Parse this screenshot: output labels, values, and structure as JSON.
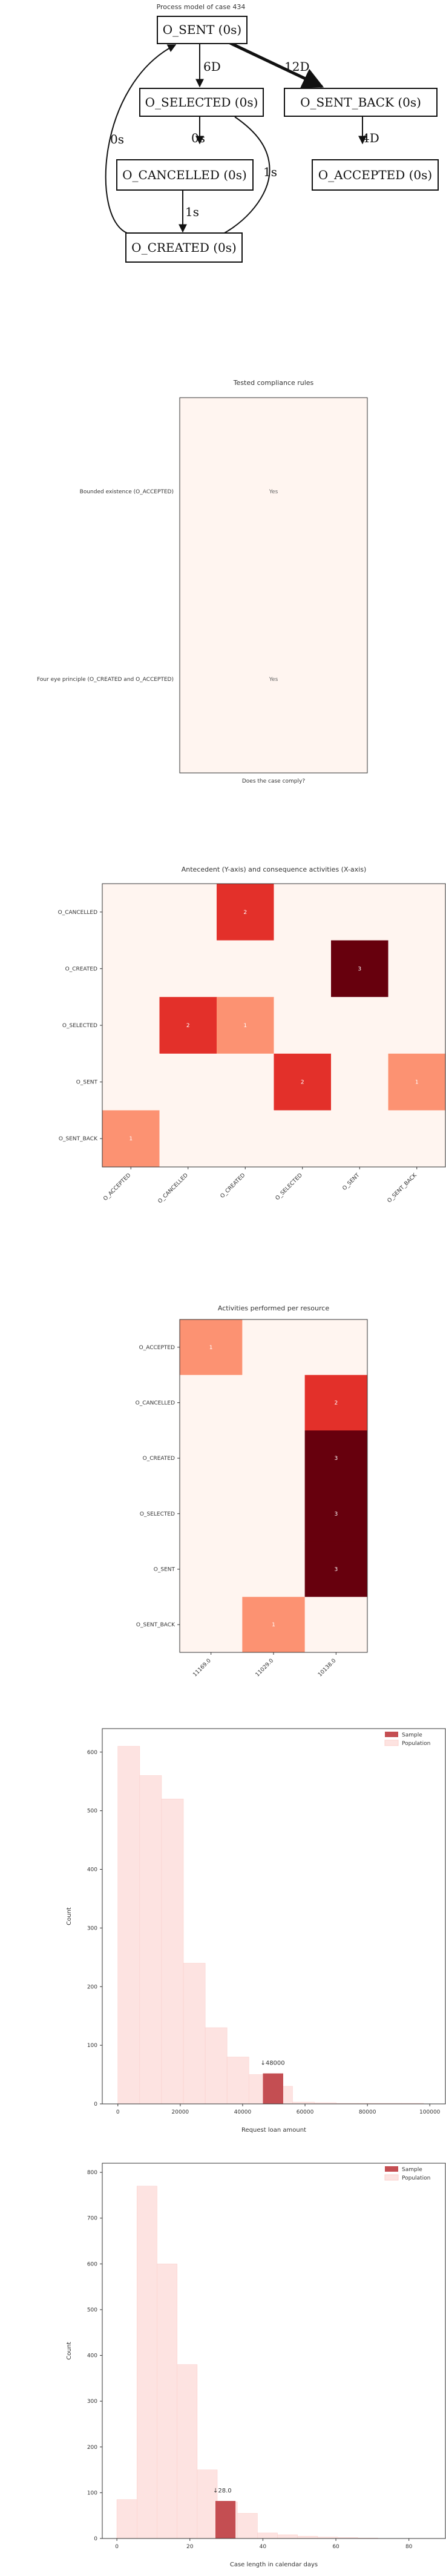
{
  "process_model": {
    "title": "Process model of case 434",
    "nodes": [
      "O_SENT (0s)",
      "O_SELECTED (0s)",
      "O_SENT_BACK (0s)",
      "O_CANCELLED (0s)",
      "O_ACCEPTED (0s)",
      "O_CREATED (0s)"
    ],
    "edges": [
      {
        "from": "O_SENT (0s)",
        "to": "O_SELECTED (0s)",
        "label": "6D"
      },
      {
        "from": "O_SENT (0s)",
        "to": "O_SENT_BACK (0s)",
        "label": "12D"
      },
      {
        "from": "O_SELECTED (0s)",
        "to": "O_CANCELLED (0s)",
        "label": "0s"
      },
      {
        "from": "O_SELECTED (0s)",
        "to": "O_CREATED (0s)",
        "label": "1s"
      },
      {
        "from": "O_SENT_BACK (0s)",
        "to": "O_ACCEPTED (0s)",
        "label": "4D"
      },
      {
        "from": "O_CANCELLED (0s)",
        "to": "O_CREATED (0s)",
        "label": "1s"
      },
      {
        "from": "O_CREATED (0s)",
        "to": "O_SENT (0s)",
        "label": "0s"
      }
    ]
  },
  "chart_data": [
    {
      "type": "heatmap",
      "title": "Tested compliance rules",
      "xlabel": "Does the case comply?",
      "rows": [
        "Bounded existence (O_ACCEPTED)",
        "Four eye principle (O_CREATED and O_ACCEPTED)"
      ],
      "columns": [
        ""
      ],
      "cells": [
        [
          "Yes"
        ],
        [
          "Yes"
        ]
      ],
      "colors": {
        "cell": "#fff5f0",
        "text": "#666666",
        "border": "#333333"
      }
    },
    {
      "type": "heatmap",
      "title": "Antecedent (Y-axis) and consequence activities (X-axis)",
      "rows": [
        "O_CANCELLED",
        "O_CREATED",
        "O_SELECTED",
        "O_SENT",
        "O_SENT_BACK"
      ],
      "columns": [
        "O_ACCEPTED",
        "O_CANCELLED",
        "O_CREATED",
        "O_SELECTED",
        "O_SENT",
        "O_SENT_BACK"
      ],
      "values": [
        [
          0,
          0,
          2,
          0,
          0,
          0
        ],
        [
          0,
          0,
          0,
          0,
          3,
          0
        ],
        [
          0,
          2,
          1,
          0,
          0,
          0
        ],
        [
          0,
          0,
          0,
          2,
          0,
          1
        ],
        [
          1,
          0,
          0,
          0,
          0,
          0
        ]
      ],
      "colors": {
        "scale": [
          "#fff5f0",
          "#fc9272",
          "#e3302a",
          "#67000d"
        ]
      }
    },
    {
      "type": "heatmap",
      "title": "Activities performed per resource",
      "rows": [
        "O_ACCEPTED",
        "O_CANCELLED",
        "O_CREATED",
        "O_SELECTED",
        "O_SENT",
        "O_SENT_BACK"
      ],
      "columns": [
        "11169.0",
        "11029.0",
        "10138.0"
      ],
      "values": [
        [
          1,
          0,
          0
        ],
        [
          0,
          0,
          2
        ],
        [
          0,
          0,
          3
        ],
        [
          0,
          0,
          3
        ],
        [
          0,
          0,
          3
        ],
        [
          0,
          1,
          0
        ]
      ],
      "colors": {
        "scale": [
          "#fff5f0",
          "#fc9272",
          "#e3302a",
          "#67000d"
        ]
      }
    },
    {
      "type": "bar",
      "xlabel": "Request loan amount",
      "ylabel": "Count",
      "xlim": [
        -5000,
        105000
      ],
      "ylim": [
        0,
        640
      ],
      "xticks": [
        "0",
        "20000",
        "40000",
        "60000",
        "80000",
        "100000"
      ],
      "xtick_values": [
        0,
        20000,
        40000,
        60000,
        80000,
        100000
      ],
      "yticks": [
        0,
        100,
        200,
        300,
        400,
        500,
        600
      ],
      "population": {
        "name": "Population",
        "bin_edges": [
          0,
          7000,
          14000,
          21000,
          28000,
          35000,
          42000,
          49000,
          56000,
          63000,
          70000,
          77000,
          84000,
          91000,
          98000
        ],
        "counts": [
          610,
          560,
          520,
          240,
          130,
          80,
          50,
          30,
          3,
          2,
          1,
          1,
          1,
          1
        ]
      },
      "sample": {
        "name": "Sample",
        "bin": [
          46500,
          53000
        ],
        "count": 52,
        "annotation": "↓48000"
      },
      "legend": "top-right",
      "colors": {
        "sample": "#c44e52",
        "population": "#fde3e1"
      }
    },
    {
      "type": "bar",
      "xlabel": "Case length in calendar days",
      "ylabel": "Count",
      "xlim": [
        -4,
        90
      ],
      "ylim": [
        0,
        820
      ],
      "xticks": [
        "0",
        "20",
        "40",
        "60",
        "80"
      ],
      "xtick_values": [
        0,
        20,
        40,
        60,
        80
      ],
      "yticks": [
        0,
        100,
        200,
        300,
        400,
        500,
        600,
        700,
        800
      ],
      "population": {
        "name": "Population",
        "bin_edges": [
          0,
          5.5,
          11,
          16.5,
          22,
          27.5,
          33,
          38.5,
          44,
          49.5,
          55,
          60.5,
          66,
          71.5
        ],
        "counts": [
          85,
          770,
          600,
          380,
          150,
          80,
          55,
          12,
          8,
          5,
          3,
          2,
          1
        ]
      },
      "sample": {
        "name": "Sample",
        "bin": [
          27,
          32.5
        ],
        "count": 82,
        "annotation": "↓28.0"
      },
      "legend": "top-right",
      "colors": {
        "sample": "#c44e52",
        "population": "#fde3e1"
      }
    }
  ]
}
